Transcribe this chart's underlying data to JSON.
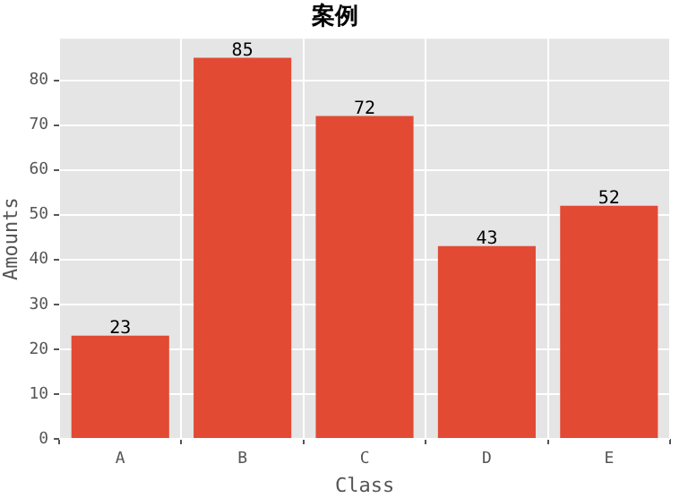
{
  "chart_data": {
    "type": "bar",
    "title": "案例",
    "xlabel": "Class",
    "ylabel": "Amounts",
    "categories": [
      "A",
      "B",
      "C",
      "D",
      "E"
    ],
    "values": [
      23,
      85,
      72,
      43,
      52
    ],
    "color": "#e24a33",
    "ylim": [
      0,
      89.25
    ],
    "yticks": [
      0,
      10,
      20,
      30,
      40,
      50,
      60,
      70,
      80
    ],
    "grid": true,
    "data_labels": true,
    "legend": false
  }
}
